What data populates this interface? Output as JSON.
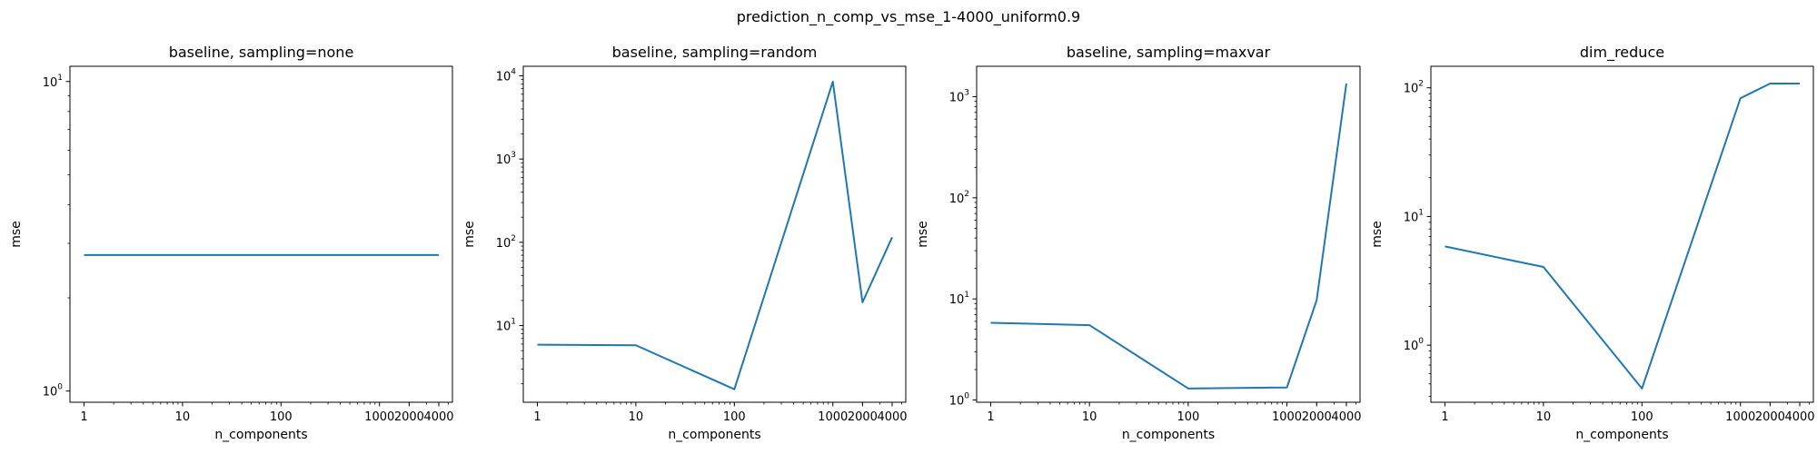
{
  "figure": {
    "title": "prediction_n_comp_vs_mse_1-4000_uniform0.9"
  },
  "chart_data": [
    {
      "type": "line",
      "title": "baseline, sampling=none",
      "xlabel": "n_components",
      "ylabel": "mse",
      "xscale": "log",
      "yscale": "log",
      "x": [
        1,
        10,
        100,
        1000,
        2000,
        4000
      ],
      "xticks": [
        "1",
        "10",
        "100",
        "1000",
        "2000",
        "4000"
      ],
      "xlim": [
        0.72,
        5500
      ],
      "ylim": [
        0.92,
        11.2
      ],
      "yticks": [
        {
          "value": 1,
          "base": "10",
          "exp": "0"
        },
        {
          "value": 10,
          "base": "10",
          "exp": "1"
        }
      ],
      "series": [
        {
          "values": [
            2.75,
            2.75,
            2.75,
            2.75,
            2.75,
            2.75
          ],
          "color": "#1f77b4"
        }
      ]
    },
    {
      "type": "line",
      "title": "baseline, sampling=random",
      "xlabel": "n_components",
      "ylabel": "mse",
      "xscale": "log",
      "yscale": "log",
      "x": [
        1,
        10,
        100,
        1000,
        2000,
        4000
      ],
      "xticks": [
        "1",
        "10",
        "100",
        "1000",
        "2000",
        "4000"
      ],
      "xlim": [
        0.72,
        5500
      ],
      "ylim": [
        1.2,
        13000
      ],
      "yticks": [
        {
          "value": 10,
          "base": "10",
          "exp": "1"
        },
        {
          "value": 100,
          "base": "10",
          "exp": "2"
        },
        {
          "value": 1000,
          "base": "10",
          "exp": "3"
        },
        {
          "value": 10000,
          "base": "10",
          "exp": "4"
        }
      ],
      "series": [
        {
          "values": [
            5.9,
            5.8,
            1.72,
            8500,
            19,
            115
          ],
          "color": "#1f77b4"
        }
      ]
    },
    {
      "type": "line",
      "title": "baseline, sampling=maxvar",
      "xlabel": "n_components",
      "ylabel": "mse",
      "xscale": "log",
      "yscale": "log",
      "x": [
        1,
        10,
        100,
        1000,
        2000,
        4000
      ],
      "xticks": [
        "1",
        "10",
        "100",
        "1000",
        "2000",
        "4000"
      ],
      "xlim": [
        0.72,
        5500
      ],
      "ylim": [
        0.95,
        2000
      ],
      "yticks": [
        {
          "value": 1,
          "base": "10",
          "exp": "0"
        },
        {
          "value": 10,
          "base": "10",
          "exp": "1"
        },
        {
          "value": 100,
          "base": "10",
          "exp": "2"
        },
        {
          "value": 1000,
          "base": "10",
          "exp": "3"
        }
      ],
      "series": [
        {
          "values": [
            5.8,
            5.5,
            1.3,
            1.33,
            9.7,
            1350
          ],
          "color": "#1f77b4"
        }
      ]
    },
    {
      "type": "line",
      "title": "dim_reduce",
      "xlabel": "n_components",
      "ylabel": "mse",
      "xscale": "log",
      "yscale": "log",
      "x": [
        1,
        10,
        100,
        1000,
        2000,
        4000
      ],
      "xticks": [
        "1",
        "10",
        "100",
        "1000",
        "2000",
        "4000"
      ],
      "xlim": [
        0.72,
        5500
      ],
      "ylim": [
        0.36,
        147
      ],
      "yticks": [
        {
          "value": 1,
          "base": "10",
          "exp": "0"
        },
        {
          "value": 10,
          "base": "10",
          "exp": "1"
        },
        {
          "value": 100,
          "base": "10",
          "exp": "2"
        }
      ],
      "series": [
        {
          "values": [
            5.85,
            4.05,
            0.46,
            83,
            108,
            108
          ],
          "color": "#1f77b4"
        }
      ]
    }
  ]
}
